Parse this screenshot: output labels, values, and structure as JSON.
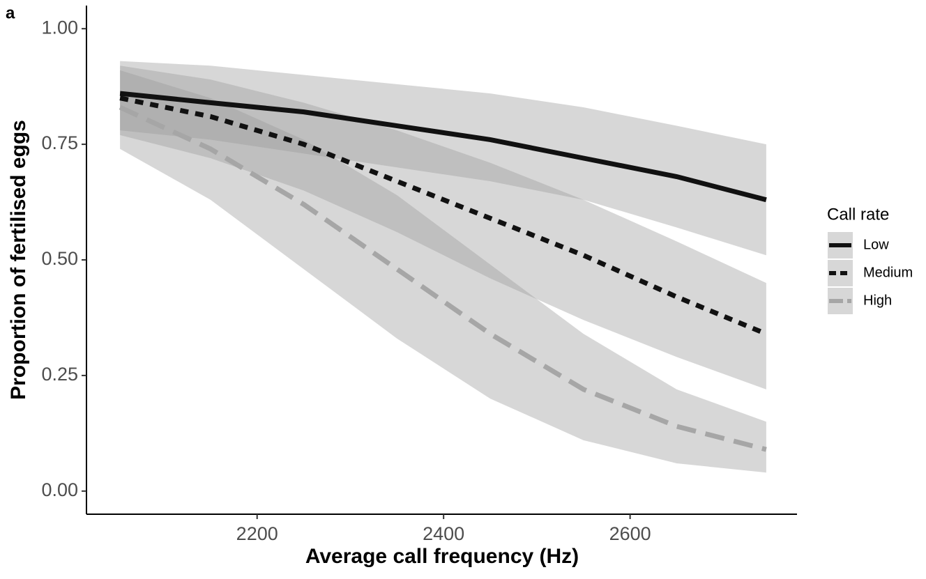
{
  "chart_data": {
    "type": "line",
    "panel_label": "a",
    "x_label": "Average call frequency (Hz)",
    "y_label": "Proportion of fertilised eggs",
    "legend_title": "Call rate",
    "legend_position": "right",
    "x": [
      2053,
      2150,
      2250,
      2350,
      2450,
      2550,
      2650,
      2746
    ],
    "series": [
      {
        "name": "Low",
        "color": "#111111",
        "dash": "solid",
        "values": [
          0.86,
          0.84,
          0.82,
          0.79,
          0.76,
          0.72,
          0.68,
          0.63
        ],
        "upper": [
          0.93,
          0.92,
          0.9,
          0.88,
          0.86,
          0.83,
          0.79,
          0.75
        ],
        "lower": [
          0.78,
          0.76,
          0.73,
          0.7,
          0.67,
          0.63,
          0.57,
          0.51
        ]
      },
      {
        "name": "Medium",
        "color": "#111111",
        "dash": "short",
        "values": [
          0.85,
          0.81,
          0.75,
          0.67,
          0.59,
          0.51,
          0.42,
          0.34
        ],
        "upper": [
          0.92,
          0.89,
          0.84,
          0.78,
          0.71,
          0.63,
          0.54,
          0.45
        ],
        "lower": [
          0.77,
          0.72,
          0.65,
          0.56,
          0.46,
          0.37,
          0.29,
          0.22
        ]
      },
      {
        "name": "High",
        "color": "#a6a6a6",
        "dash": "long",
        "values": [
          0.83,
          0.74,
          0.62,
          0.48,
          0.34,
          0.22,
          0.14,
          0.09
        ],
        "upper": [
          0.91,
          0.85,
          0.76,
          0.64,
          0.49,
          0.34,
          0.22,
          0.15
        ],
        "lower": [
          0.74,
          0.63,
          0.48,
          0.33,
          0.2,
          0.11,
          0.06,
          0.04
        ]
      }
    ],
    "band_color": "#9a9a9a",
    "xlim": [
      2017,
      2779
    ],
    "xticks": [
      2200,
      2400,
      2600
    ],
    "ylim": [
      -0.05,
      1.05
    ],
    "yticks": [
      {
        "value": 0,
        "label": "0.00"
      },
      {
        "value": 0.25,
        "label": "0.25"
      },
      {
        "value": 0.5,
        "label": "0.50"
      },
      {
        "value": 0.75,
        "label": "0.75"
      },
      {
        "value": 1,
        "label": "1.00"
      }
    ],
    "grid": false
  }
}
